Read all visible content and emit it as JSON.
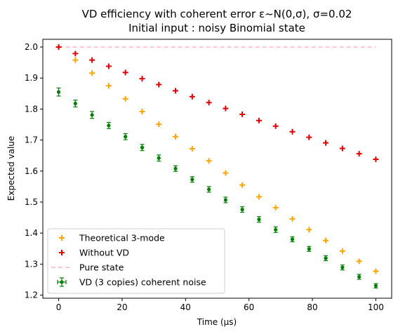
{
  "chart_data": {
    "type": "scatter",
    "title": "VD efficiency with coherent error ε~N(0,σ), σ=0.02",
    "subtitle": "Initial input : noisy Binomial state",
    "xlabel": "Time (μs)",
    "ylabel": "Expected value",
    "xlim": [
      -5,
      105
    ],
    "ylim": [
      1.19,
      2.025
    ],
    "xticks": [
      0,
      20,
      40,
      60,
      80,
      100
    ],
    "yticks": [
      1.2,
      1.3,
      1.4,
      1.5,
      1.6,
      1.7,
      1.8,
      1.9,
      2.0
    ],
    "xtick_labels": [
      "0",
      "20",
      "40",
      "60",
      "80",
      "100"
    ],
    "ytick_labels": [
      "1.2",
      "1.3",
      "1.4",
      "1.5",
      "1.6",
      "1.7",
      "1.8",
      "1.9",
      "2.0"
    ],
    "grid": false,
    "legend_position": "lower-left",
    "x": [
      0,
      5.26,
      10.53,
      15.79,
      21.05,
      26.32,
      31.58,
      36.84,
      42.11,
      47.37,
      52.63,
      57.89,
      63.16,
      68.42,
      73.68,
      78.95,
      84.21,
      89.47,
      94.74,
      100
    ],
    "series": [
      {
        "name": "Theoretical 3-mode",
        "marker": "plus",
        "color": "#FFA500",
        "values": [
          2.0,
          1.958,
          1.916,
          1.875,
          1.833,
          1.792,
          1.751,
          1.711,
          1.672,
          1.633,
          1.594,
          1.555,
          1.517,
          1.482,
          1.446,
          1.411,
          1.376,
          1.342,
          1.309,
          1.277
        ]
      },
      {
        "name": "Without VD",
        "marker": "plus",
        "color": "#E00000",
        "values": [
          2.0,
          1.979,
          1.958,
          1.938,
          1.918,
          1.898,
          1.879,
          1.859,
          1.84,
          1.821,
          1.802,
          1.783,
          1.763,
          1.745,
          1.727,
          1.709,
          1.691,
          1.673,
          1.656,
          1.638
        ]
      },
      {
        "name": "Pure state",
        "marker": "dashed-line",
        "color": "#FFB6C1",
        "values": [
          2.0,
          2.0
        ]
      },
      {
        "name": "VD (3 copies) coherent noise",
        "marker": "dot-errorbar",
        "color": "#008000",
        "values": [
          1.855,
          1.818,
          1.781,
          1.747,
          1.711,
          1.676,
          1.642,
          1.608,
          1.573,
          1.541,
          1.507,
          1.476,
          1.444,
          1.411,
          1.38,
          1.349,
          1.319,
          1.289,
          1.259,
          1.23
        ],
        "errors": [
          0.013,
          0.011,
          0.011,
          0.01,
          0.01,
          0.01,
          0.01,
          0.009,
          0.009,
          0.009,
          0.009,
          0.009,
          0.009,
          0.009,
          0.008,
          0.008,
          0.008,
          0.008,
          0.008,
          0.007
        ]
      }
    ],
    "pure_state_x": [
      0,
      100
    ]
  }
}
